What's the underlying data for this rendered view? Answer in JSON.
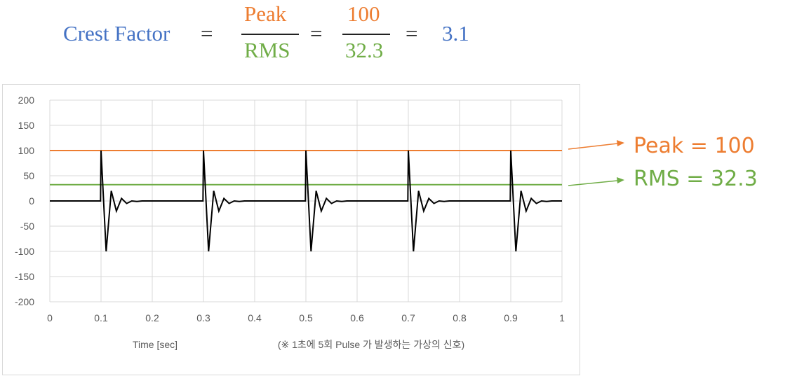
{
  "formula": {
    "lhs": "Crest Factor",
    "equals": "=",
    "num1": "Peak",
    "den1": "RMS",
    "num2": "100",
    "den2": "32.3",
    "result": "3.1",
    "colors": {
      "lhs": "#4472c4",
      "peak": "#ed7d31",
      "rms": "#70ad47",
      "op": "#222222"
    }
  },
  "callouts": {
    "peak": "Peak = 100",
    "rms": "RMS = 32.3"
  },
  "chart_data": {
    "type": "line",
    "xlabel": "Time [sec]",
    "note": "(※ 1초에 5회 Pulse 가 발생하는 가상의 신호)",
    "xlim": [
      0,
      1
    ],
    "ylim": [
      -200,
      200
    ],
    "xticks": [
      "0",
      "0.1",
      "0.2",
      "0.3",
      "0.4",
      "0.5",
      "0.6",
      "0.7",
      "0.8",
      "0.9",
      "1"
    ],
    "yticks": [
      "200",
      "150",
      "100",
      "50",
      "0",
      "-50",
      "-100",
      "-150",
      "-200"
    ],
    "grid": true,
    "series": [
      {
        "color": "#000000",
        "pulse_times": [
          0.1,
          0.3,
          0.5,
          0.7,
          0.9
        ],
        "pulse_shape": [
          [
            -0.01,
            0
          ],
          [
            -0.001,
            0
          ],
          [
            0,
            100
          ],
          [
            0.01,
            -100
          ],
          [
            0.02,
            20
          ],
          [
            0.03,
            -20
          ],
          [
            0.04,
            5
          ],
          [
            0.05,
            -5
          ],
          [
            0.06,
            0
          ],
          [
            0.07,
            -1
          ],
          [
            0.08,
            0
          ]
        ],
        "baseline": 0
      },
      {
        "color": "#ed7d31",
        "constant": 100
      },
      {
        "color": "#70ad47",
        "constant": 32.3
      }
    ]
  }
}
